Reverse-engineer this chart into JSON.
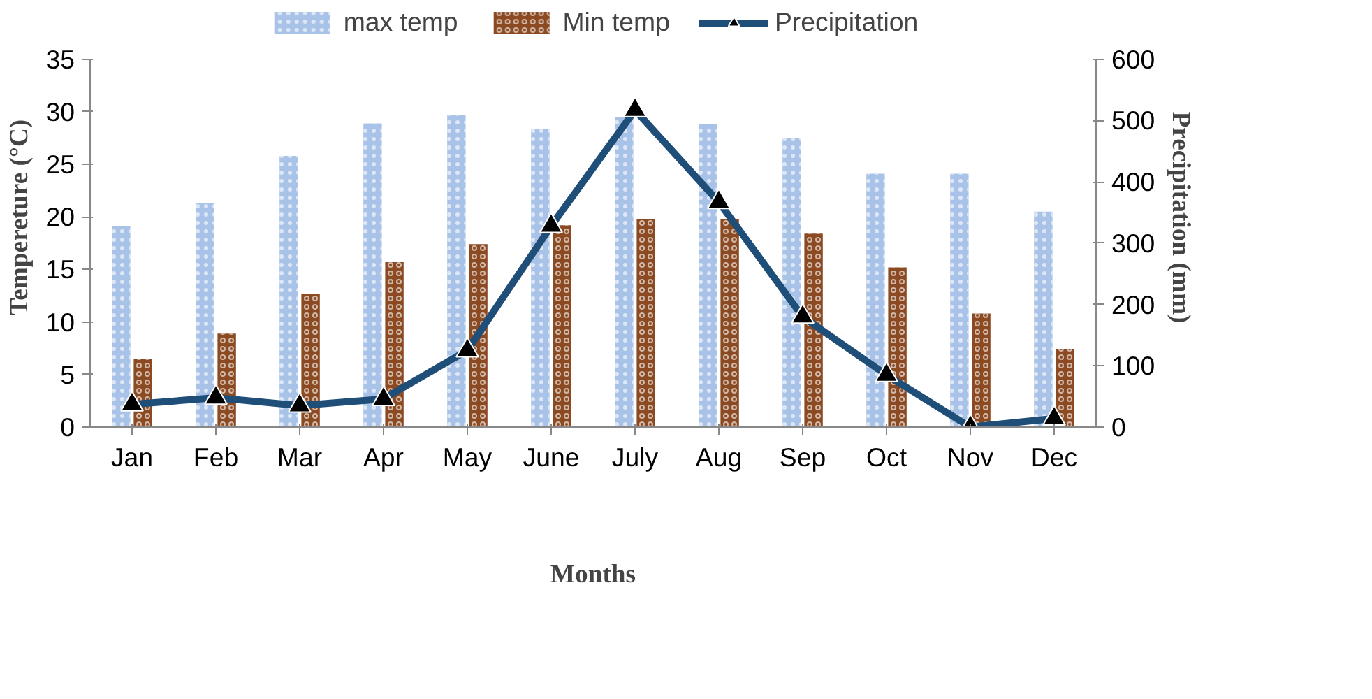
{
  "chart_data": {
    "type": "bar",
    "xlabel": "Months",
    "ylabel": "Tempereture (°C)",
    "y2label": "Precipitation (mm)",
    "categories": [
      "Jan",
      "Feb",
      "Mar",
      "Apr",
      "May",
      "June",
      "July",
      "Aug",
      "Sep",
      "Oct",
      "Nov",
      "Dec"
    ],
    "series": [
      {
        "name": "max temp",
        "color": "#a9c3e8",
        "values": [
          19.1,
          21.3,
          25.8,
          28.9,
          29.7,
          28.4,
          29.5,
          28.8,
          27.5,
          24.1,
          24.1,
          20.5
        ]
      },
      {
        "name": "Min temp",
        "color": "#8b4a22",
        "values": [
          6.5,
          8.9,
          12.7,
          15.7,
          17.4,
          19.2,
          19.8,
          19.8,
          18.4,
          15.2,
          10.8,
          7.4
        ]
      },
      {
        "name": "Precipitation",
        "type": "line",
        "axis": "y2",
        "color": "#1f4e79",
        "marker": "triangle",
        "values": [
          37,
          48,
          35,
          46,
          125,
          328,
          517,
          367,
          180,
          85,
          0,
          14
        ]
      }
    ],
    "ylim": [
      0,
      35
    ],
    "yticks": [
      0,
      5,
      10,
      15,
      20,
      25,
      30,
      35
    ],
    "y2lim": [
      0,
      600
    ],
    "y2ticks": [
      0,
      100,
      200,
      300,
      400,
      500,
      600
    ],
    "grid": false,
    "legend": "top"
  }
}
